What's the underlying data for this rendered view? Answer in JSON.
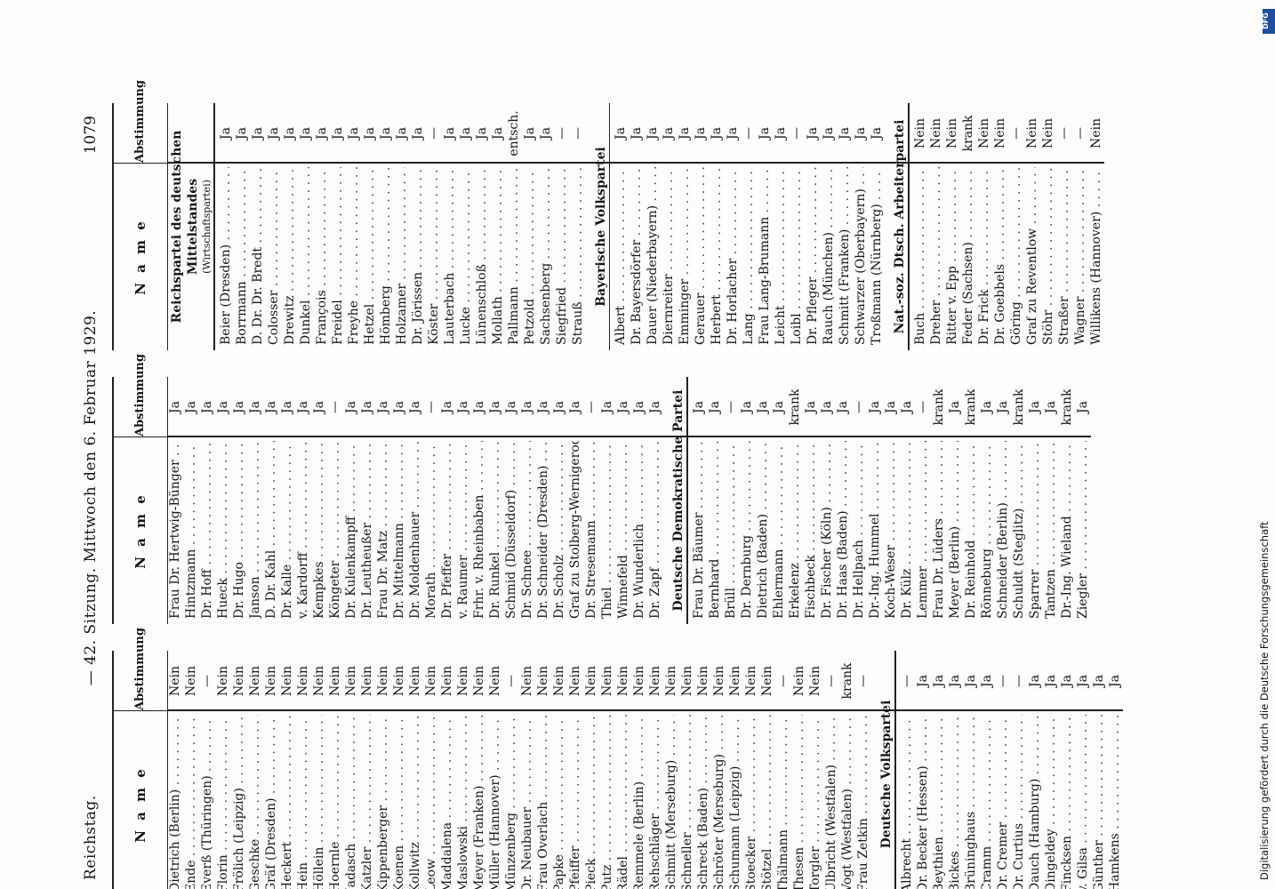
{
  "page_header": {
    "left": "Reichstag.",
    "center": "— 42. Sitzung. Mittwoch den 6. Februar 1929.",
    "page_number": "1079"
  },
  "table_headings": {
    "name": "N a m e",
    "vote": "Abstimmung"
  },
  "columns": [
    {
      "rows": [
        {
          "kind": "row",
          "name": "Dietrich (Berlin)",
          "vote": "Nein"
        },
        {
          "kind": "row",
          "name": "Ende",
          "vote": "Nein"
        },
        {
          "kind": "row",
          "name": "Everß (Thüringen)",
          "vote": "—"
        },
        {
          "kind": "row",
          "name": "Florin",
          "vote": "Nein"
        },
        {
          "kind": "row",
          "name": "Frölich (Leipzig)",
          "vote": "Nein"
        },
        {
          "kind": "row",
          "name": "Geschke",
          "vote": "Nein"
        },
        {
          "kind": "row",
          "name": "Gräf (Dresden)",
          "vote": "Nein"
        },
        {
          "kind": "row",
          "name": "Heckert",
          "vote": "Nein"
        },
        {
          "kind": "row",
          "name": "Hein",
          "vote": "Nein"
        },
        {
          "kind": "row",
          "name": "Höllein",
          "vote": "Nein"
        },
        {
          "kind": "row",
          "name": "Hoernle",
          "vote": "Nein"
        },
        {
          "kind": "row",
          "name": "Jadasch",
          "vote": "Nein"
        },
        {
          "kind": "row",
          "name": "Katzler",
          "vote": "Nein"
        },
        {
          "kind": "row",
          "name": "Kippenberger",
          "vote": "Nein"
        },
        {
          "kind": "row",
          "name": "Koenen",
          "vote": "Nein"
        },
        {
          "kind": "row",
          "name": "Kollwitz",
          "vote": "Nein"
        },
        {
          "kind": "row",
          "name": "Leow",
          "vote": "Nein"
        },
        {
          "kind": "row",
          "name": "Maddalena",
          "vote": "Nein"
        },
        {
          "kind": "row",
          "name": "Maslowski",
          "vote": "Nein"
        },
        {
          "kind": "row",
          "name": "Meyer (Franken)",
          "vote": "Nein"
        },
        {
          "kind": "row",
          "name": "Müller (Hannover)",
          "vote": "Nein"
        },
        {
          "kind": "row",
          "name": "Münzenberg",
          "vote": "—"
        },
        {
          "kind": "row",
          "name": "Dr. Neubauer",
          "vote": "Nein"
        },
        {
          "kind": "row",
          "name": "Frau Overlach",
          "vote": "Nein"
        },
        {
          "kind": "row",
          "name": "Papke",
          "vote": "Nein"
        },
        {
          "kind": "row",
          "name": "Pfeiffer",
          "vote": "Nein"
        },
        {
          "kind": "row",
          "name": "Pieck",
          "vote": "Nein"
        },
        {
          "kind": "row",
          "name": "Putz",
          "vote": "Nein"
        },
        {
          "kind": "row",
          "name": "Rädel",
          "vote": "Nein"
        },
        {
          "kind": "row",
          "name": "Remmele (Berlin)",
          "vote": "Nein"
        },
        {
          "kind": "row",
          "name": "Rehschläger",
          "vote": "Nein"
        },
        {
          "kind": "row",
          "name": "Schmitt (Merseburg)",
          "vote": "Nein"
        },
        {
          "kind": "row",
          "name": "Schneller",
          "vote": "Nein"
        },
        {
          "kind": "row",
          "name": "Schreck (Baden)",
          "vote": "Nein"
        },
        {
          "kind": "row",
          "name": "Schröter (Merseburg)",
          "vote": "Nein"
        },
        {
          "kind": "row",
          "name": "Schumann (Leipzig)",
          "vote": "Nein"
        },
        {
          "kind": "row",
          "name": "Stoecker",
          "vote": "Nein"
        },
        {
          "kind": "row",
          "name": "Stötzel",
          "vote": "Nein"
        },
        {
          "kind": "row",
          "name": "Thälmann",
          "vote": "—"
        },
        {
          "kind": "row",
          "name": "Thesen",
          "vote": "Nein"
        },
        {
          "kind": "row",
          "name": "Torgler",
          "vote": "Nein"
        },
        {
          "kind": "row",
          "name": "Ulbricht (Westfalen)",
          "vote": "—"
        },
        {
          "kind": "row",
          "name": "Vogt (Westfalen)",
          "vote": "krank"
        },
        {
          "kind": "row",
          "name": "Frau Zetkin",
          "vote": "—"
        },
        {
          "kind": "section",
          "title": "Deutsche Volkspartei"
        },
        {
          "kind": "row",
          "name": "Albrecht",
          "vote": "—"
        },
        {
          "kind": "row",
          "name": "Dr. Becker (Hessen)",
          "vote": "Ja"
        },
        {
          "kind": "row",
          "name": "Beythien",
          "vote": "Ja"
        },
        {
          "kind": "row",
          "name": "Bickes",
          "vote": "Ja"
        },
        {
          "kind": "row",
          "name": "Brüninghaus",
          "vote": "Ja"
        },
        {
          "kind": "row",
          "name": "Cramm",
          "vote": "Ja"
        },
        {
          "kind": "row",
          "name": "Dr. Cremer",
          "vote": "—"
        },
        {
          "kind": "row",
          "name": "Dr. Curtius",
          "vote": "—"
        },
        {
          "kind": "row",
          "name": "Dauch (Hamburg)",
          "vote": "Ja"
        },
        {
          "kind": "row",
          "name": "Dingeldey",
          "vote": "Ja"
        },
        {
          "kind": "row",
          "name": "Fincksen",
          "vote": "Ja"
        },
        {
          "kind": "row",
          "name": "v. Gilsa",
          "vote": "Ja"
        },
        {
          "kind": "row",
          "name": "Günther",
          "vote": "Ja"
        },
        {
          "kind": "row",
          "name": "Hamkens",
          "vote": "Ja"
        }
      ]
    },
    {
      "rows": [
        {
          "kind": "row",
          "name": "Frau Dr. Hertwig-Bünger",
          "vote": "Ja"
        },
        {
          "kind": "row",
          "name": "Hintzmann",
          "vote": "Ja"
        },
        {
          "kind": "row",
          "name": "Dr. Hoff",
          "vote": "Ja"
        },
        {
          "kind": "row",
          "name": "Hueck",
          "vote": "Ja"
        },
        {
          "kind": "row",
          "name": "Dr. Hugo",
          "vote": "Ja"
        },
        {
          "kind": "row",
          "name": "Janson",
          "vote": "Ja"
        },
        {
          "kind": "row",
          "name": "D. Dr. Kahl",
          "vote": "Ja"
        },
        {
          "kind": "row",
          "name": "Dr. Kalle",
          "vote": "Ja"
        },
        {
          "kind": "row",
          "name": "v. Kardorff",
          "vote": "Ja"
        },
        {
          "kind": "row",
          "name": "Kempkes",
          "vote": "Ja"
        },
        {
          "kind": "row",
          "name": "Köngeter",
          "vote": "—"
        },
        {
          "kind": "row",
          "name": "Dr. Kulenkampff",
          "vote": "Ja"
        },
        {
          "kind": "row",
          "name": "Dr. Leutheußer",
          "vote": "Ja"
        },
        {
          "kind": "row",
          "name": "Frau Dr. Matz",
          "vote": "Ja"
        },
        {
          "kind": "row",
          "name": "Dr. Mittelmann",
          "vote": "Ja"
        },
        {
          "kind": "row",
          "name": "Dr. Moldenhauer",
          "vote": "Ja"
        },
        {
          "kind": "row",
          "name": "Morath",
          "vote": "—"
        },
        {
          "kind": "row",
          "name": "Dr. Pfeffer",
          "vote": "Ja"
        },
        {
          "kind": "row",
          "name": "v. Raumer",
          "vote": "Ja"
        },
        {
          "kind": "row",
          "name": "Frhr. v. Rheinbaben",
          "vote": "Ja"
        },
        {
          "kind": "row",
          "name": "Dr. Runkel",
          "vote": "Ja"
        },
        {
          "kind": "row",
          "name": "Schmid (Düsseldorf)",
          "vote": "Ja"
        },
        {
          "kind": "row",
          "name": "Dr. Schnee",
          "vote": "Ja"
        },
        {
          "kind": "row",
          "name": "Dr. Schneider (Dresden)",
          "vote": "Ja"
        },
        {
          "kind": "row",
          "name": "Dr. Scholz",
          "vote": "Ja"
        },
        {
          "kind": "row",
          "name": "Graf zu Stolberg-Wernigerode",
          "vote": "Ja"
        },
        {
          "kind": "row",
          "name": "Dr. Stresemann",
          "vote": "—"
        },
        {
          "kind": "row",
          "name": "Thiel",
          "vote": "Ja"
        },
        {
          "kind": "row",
          "name": "Winnefeld",
          "vote": "Ja"
        },
        {
          "kind": "row",
          "name": "Dr. Wunderlich",
          "vote": "Ja"
        },
        {
          "kind": "row",
          "name": "Dr. Zapf",
          "vote": "Ja"
        },
        {
          "kind": "section",
          "title": "Deutsche Demokratische Partei"
        },
        {
          "kind": "row",
          "name": "Frau Dr. Bäumer",
          "vote": "Ja"
        },
        {
          "kind": "row",
          "name": "Bernhard",
          "vote": "Ja"
        },
        {
          "kind": "row",
          "name": "Brüll",
          "vote": "—"
        },
        {
          "kind": "row",
          "name": "Dr. Dernburg",
          "vote": "Ja"
        },
        {
          "kind": "row",
          "name": "Dietrich (Baden)",
          "vote": "Ja"
        },
        {
          "kind": "row",
          "name": "Ehlermann",
          "vote": "Ja"
        },
        {
          "kind": "row",
          "name": "Erkelenz",
          "vote": "krank"
        },
        {
          "kind": "row",
          "name": "Fischbeck",
          "vote": "Ja"
        },
        {
          "kind": "row",
          "name": "Dr. Fischer (Köln)",
          "vote": "Ja"
        },
        {
          "kind": "row",
          "name": "Dr. Haas (Baden)",
          "vote": "Ja"
        },
        {
          "kind": "row",
          "name": "Dr. Hellpach",
          "vote": "—"
        },
        {
          "kind": "row",
          "name": "Dr.-Ing. Hummel",
          "vote": "Ja"
        },
        {
          "kind": "row",
          "name": "Koch-Weser",
          "vote": "Ja"
        },
        {
          "kind": "row",
          "name": "Dr. Külz",
          "vote": "Ja"
        },
        {
          "kind": "row",
          "name": "Lemmer",
          "vote": "—"
        },
        {
          "kind": "row",
          "name": "Frau Dr. Lüders",
          "vote": "krank"
        },
        {
          "kind": "row",
          "name": "Meyer (Berlin)",
          "vote": "Ja"
        },
        {
          "kind": "row",
          "name": "Dr. Reinhold",
          "vote": "krank"
        },
        {
          "kind": "row",
          "name": "Rönneburg",
          "vote": "Ja"
        },
        {
          "kind": "row",
          "name": "Schneider (Berlin)",
          "vote": "Ja"
        },
        {
          "kind": "row",
          "name": "Schuldt (Steglitz)",
          "vote": "krank"
        },
        {
          "kind": "row",
          "name": "Sparrer",
          "vote": "Ja"
        },
        {
          "kind": "row",
          "name": "Tantzen",
          "vote": "Ja"
        },
        {
          "kind": "row",
          "name": "Dr.-Ing. Wieland",
          "vote": "krank"
        },
        {
          "kind": "row",
          "name": "Ziegler",
          "vote": "Ja"
        }
      ]
    },
    {
      "rows": [
        {
          "kind": "section",
          "title": "Reichspartei des deutschen Mittelstandes",
          "subtitle": "(Wirtschaftspartei)"
        },
        {
          "kind": "row",
          "name": "Beier (Dresden)",
          "vote": "Ja"
        },
        {
          "kind": "row",
          "name": "Borrmann",
          "vote": "Ja"
        },
        {
          "kind": "row",
          "name": "D. Dr. Dr. Bredt",
          "vote": "Ja"
        },
        {
          "kind": "row",
          "name": "Colosser",
          "vote": "Ja"
        },
        {
          "kind": "row",
          "name": "Drewitz",
          "vote": "Ja"
        },
        {
          "kind": "row",
          "name": "Dunkel",
          "vote": "Ja"
        },
        {
          "kind": "row",
          "name": "François",
          "vote": "Ja"
        },
        {
          "kind": "row",
          "name": "Freidel",
          "vote": "Ja"
        },
        {
          "kind": "row",
          "name": "Freyhe",
          "vote": "Ja"
        },
        {
          "kind": "row",
          "name": "Hetzel",
          "vote": "Ja"
        },
        {
          "kind": "row",
          "name": "Hömberg",
          "vote": "Ja"
        },
        {
          "kind": "row",
          "name": "Holzamer",
          "vote": "Ja"
        },
        {
          "kind": "row",
          "name": "Dr. Jörissen",
          "vote": "Ja"
        },
        {
          "kind": "row",
          "name": "Köster",
          "vote": "—"
        },
        {
          "kind": "row",
          "name": "Lauterbach",
          "vote": "Ja"
        },
        {
          "kind": "row",
          "name": "Lucke",
          "vote": "Ja"
        },
        {
          "kind": "row",
          "name": "Lünenschloß",
          "vote": "Ja"
        },
        {
          "kind": "row",
          "name": "Mollath",
          "vote": "Ja"
        },
        {
          "kind": "row",
          "name": "Pallmann",
          "vote": "entsch."
        },
        {
          "kind": "row",
          "name": "Petzold",
          "vote": "Ja"
        },
        {
          "kind": "row",
          "name": "Sachsenberg",
          "vote": "Ja"
        },
        {
          "kind": "row",
          "name": "Siegfried",
          "vote": "—"
        },
        {
          "kind": "row",
          "name": "Strauß",
          "vote": "—"
        },
        {
          "kind": "section",
          "title": "Bayerische Volkspartei"
        },
        {
          "kind": "row",
          "name": "Albert",
          "vote": "Ja"
        },
        {
          "kind": "row",
          "name": "Dr. Bayersdörfer",
          "vote": "Ja"
        },
        {
          "kind": "row",
          "name": "Dauer (Niederbayern)",
          "vote": "Ja"
        },
        {
          "kind": "row",
          "name": "Diernreiter",
          "vote": "Ja"
        },
        {
          "kind": "row",
          "name": "Emminger",
          "vote": "Ja"
        },
        {
          "kind": "row",
          "name": "Gerauer",
          "vote": "Ja"
        },
        {
          "kind": "row",
          "name": "Herbert",
          "vote": "Ja"
        },
        {
          "kind": "row",
          "name": "Dr. Horlacher",
          "vote": "Ja"
        },
        {
          "kind": "row",
          "name": "Lang",
          "vote": "—"
        },
        {
          "kind": "row",
          "name": "Frau Lang-Brumann",
          "vote": "Ja"
        },
        {
          "kind": "row",
          "name": "Leicht",
          "vote": "Ja"
        },
        {
          "kind": "row",
          "name": "Loibl",
          "vote": "—"
        },
        {
          "kind": "row",
          "name": "Dr. Pfleger",
          "vote": "Ja"
        },
        {
          "kind": "row",
          "name": "Rauch (München)",
          "vote": "Ja"
        },
        {
          "kind": "row",
          "name": "Schmitt (Franken)",
          "vote": "Ja"
        },
        {
          "kind": "row",
          "name": "Schwarzer (Oberbayern)",
          "vote": "Ja"
        },
        {
          "kind": "row",
          "name": "Troßmann (Nürnberg)",
          "vote": "Ja"
        },
        {
          "kind": "section",
          "title": "Nat.-soz. Dtsch. Arbeiterpartei"
        },
        {
          "kind": "row",
          "name": "Buch",
          "vote": "Nein"
        },
        {
          "kind": "row",
          "name": "Dreher",
          "vote": "Nein"
        },
        {
          "kind": "row",
          "name": "Ritter v. Epp",
          "vote": "Nein"
        },
        {
          "kind": "row",
          "name": "Feder (Sachsen)",
          "vote": "krank"
        },
        {
          "kind": "row",
          "name": "Dr. Frick",
          "vote": "Nein"
        },
        {
          "kind": "row",
          "name": "Dr. Goebbels",
          "vote": "Nein"
        },
        {
          "kind": "row",
          "name": "Göring",
          "vote": "—"
        },
        {
          "kind": "row",
          "name": "Graf zu Reventlow",
          "vote": "Nein"
        },
        {
          "kind": "row",
          "name": "Stöhr",
          "vote": "Nein"
        },
        {
          "kind": "row",
          "name": "Straßer",
          "vote": "—"
        },
        {
          "kind": "row",
          "name": "Wagner",
          "vote": "—"
        },
        {
          "kind": "row",
          "name": "Willikens (Hannover)",
          "vote": "Nein"
        }
      ]
    }
  ],
  "sidebar": {
    "text": "Digitalisierung gefördert durch die Deutsche Forschungsgemeinschaft",
    "logo": "DFG"
  }
}
